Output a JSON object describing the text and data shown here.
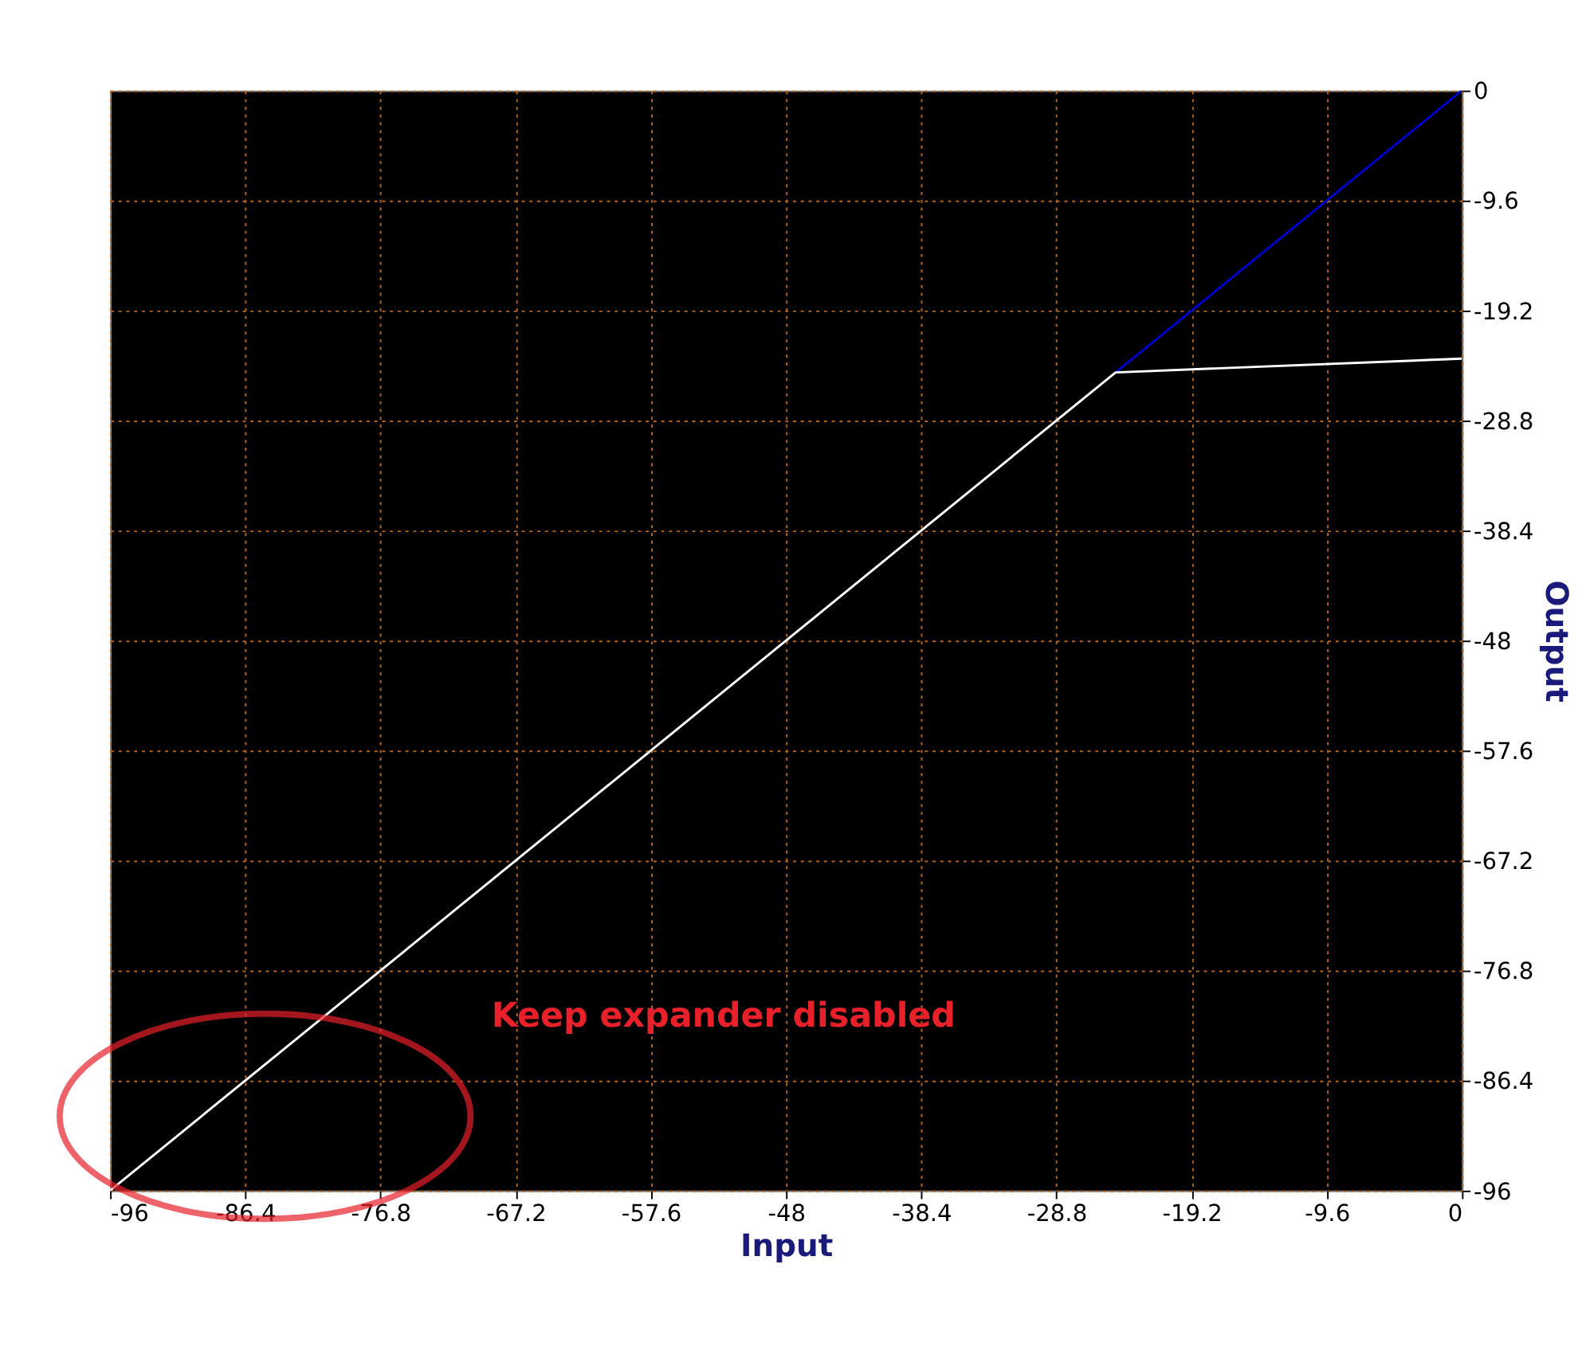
{
  "chart_data": {
    "type": "line",
    "xlabel": "Input",
    "ylabel": "Output",
    "xlim": [
      -96,
      0
    ],
    "ylim": [
      -96,
      0
    ],
    "xticks": [
      -96,
      -86.4,
      -76.8,
      -67.2,
      -57.6,
      -48,
      -38.4,
      -28.8,
      -19.2,
      -9.6,
      0
    ],
    "yticks": [
      -96,
      -86.4,
      -76.8,
      -67.2,
      -57.6,
      -48,
      -38.4,
      -28.8,
      -19.2,
      -9.6,
      0
    ],
    "grid": true,
    "series": [
      {
        "color": "#0000cc",
        "x": [
          -24.6,
          0
        ],
        "values": [
          -24.6,
          0
        ]
      },
      {
        "color": "#ffffff",
        "x": [
          -96,
          -24.6,
          0
        ],
        "values": [
          -96,
          -24.6,
          -23.4
        ]
      }
    ],
    "annotations": [
      "Keep expander disabled"
    ]
  }
}
